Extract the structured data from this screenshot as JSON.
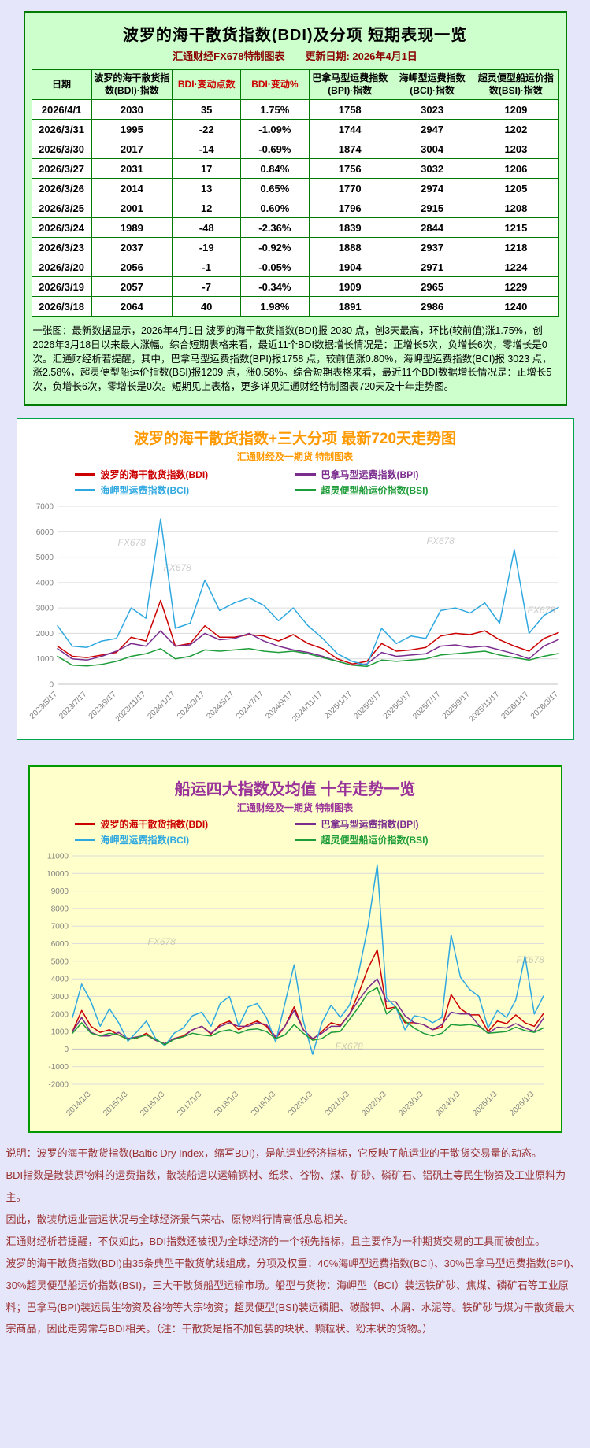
{
  "page": {
    "watermark": "FX678"
  },
  "top_panel": {
    "title": "波罗的海干散货指数(BDI)及分项 短期表现一览",
    "subtitle": "汇通财经FX678特制图表",
    "update_date": "更新日期: 2026年4月1日",
    "note": "一张图：最新数据显示，2026年4月1日 波罗的海干散货指数(BDI)报 2030 点，创3天最高，环比(较前值)涨1.75%，创2026年3月18日以来最大涨幅。综合短期表格来看，最近11个BDI数据增长情况是：正增长5次，负增长6次，零增长是0次。汇通财经析若提醒，其中，巴拿马型运费指数(BPI)报1758 点，较前值涨0.80%，海岬型运费指数(BCI)报 3023 点，涨2.58%，超灵便型船运价指数(BSI)报1209 点，涨0.58%。综合短期表格来看，最近11个BDI数据增长情况是：正增长5次，负增长6次，零增长是0次。短期见上表格，更多详见汇通财经特制图表720天及十年走势图。",
    "table": {
      "headers": [
        {
          "label": "日期",
          "color": "#000000"
        },
        {
          "label": "波罗的海干散货指数(BDI)·指数",
          "color": "#000000"
        },
        {
          "label": "BDI·变动点数",
          "color": "#CC0000"
        },
        {
          "label": "BDI·变动%",
          "color": "#CC0000"
        },
        {
          "label": "巴拿马型运费指数(BPI)·指数",
          "color": "#000000"
        },
        {
          "label": "海岬型运费指数(BCI)·指数",
          "color": "#000000"
        },
        {
          "label": "超灵便型船运价指数(BSI)·指数",
          "color": "#000000"
        }
      ],
      "rows": [
        [
          "2026/4/1",
          "2030",
          "35",
          "1.75%",
          "1758",
          "3023",
          "1209"
        ],
        [
          "2026/3/31",
          "1995",
          "-22",
          "-1.09%",
          "1744",
          "2947",
          "1202"
        ],
        [
          "2026/3/30",
          "2017",
          "-14",
          "-0.69%",
          "1874",
          "3004",
          "1203"
        ],
        [
          "2026/3/27",
          "2031",
          "17",
          "0.84%",
          "1756",
          "3032",
          "1206"
        ],
        [
          "2026/3/26",
          "2014",
          "13",
          "0.65%",
          "1770",
          "2974",
          "1205"
        ],
        [
          "2026/3/25",
          "2001",
          "12",
          "0.60%",
          "1796",
          "2915",
          "1208"
        ],
        [
          "2026/3/24",
          "1989",
          "-48",
          "-2.36%",
          "1839",
          "2844",
          "1215"
        ],
        [
          "2026/3/23",
          "2037",
          "-19",
          "-0.92%",
          "1888",
          "2937",
          "1218"
        ],
        [
          "2026/3/20",
          "2056",
          "-1",
          "-0.05%",
          "1904",
          "2971",
          "1224"
        ],
        [
          "2026/3/19",
          "2057",
          "-7",
          "-0.34%",
          "1909",
          "2965",
          "1229"
        ],
        [
          "2026/3/18",
          "2064",
          "40",
          "1.98%",
          "1891",
          "2986",
          "1240"
        ]
      ]
    }
  },
  "chart_data": [
    {
      "type": "line",
      "title": "波罗的海干散货指数+三大分项  最新720天走势图",
      "subtitle": "汇通财经及一期货 特制图表",
      "xlabel": "",
      "ylabel": "",
      "grid": true,
      "legend_position": "top",
      "ylim": [
        0,
        7000
      ],
      "ytick_step": 1000,
      "x": [
        0,
        1,
        2,
        3,
        4,
        5,
        6,
        7,
        8,
        9,
        10,
        11,
        12,
        13,
        14,
        15,
        16,
        17,
        18,
        19,
        20,
        21,
        22,
        23,
        24,
        25,
        26,
        27,
        28,
        29,
        30,
        31,
        32,
        33,
        34
      ],
      "xtick_values": [
        0,
        2,
        4,
        6,
        8,
        10,
        12,
        14,
        16,
        18,
        20,
        22,
        24,
        26,
        28,
        30,
        32,
        34
      ],
      "xtick_labels": [
        "2023/5/17",
        "2023/7/17",
        "2023/9/17",
        "2023/11/17",
        "2024/1/17",
        "2024/3/17",
        "2024/5/17",
        "2024/7/17",
        "2024/9/17",
        "2024/11/17",
        "2025/1/17",
        "2025/3/17",
        "2025/5/17",
        "2025/7/17",
        "2025/9/17",
        "2025/11/17",
        "2026/1/17",
        "2026/3/17"
      ],
      "series": [
        {
          "code": "bdi",
          "name": "波罗的海干散货指数(BDI)",
          "color": "#CC0000",
          "values": [
            1500,
            1100,
            1050,
            1150,
            1250,
            1850,
            1700,
            3300,
            1500,
            1600,
            2300,
            1850,
            1850,
            1950,
            1900,
            1700,
            1950,
            1600,
            1400,
            1000,
            800,
            900,
            1600,
            1300,
            1350,
            1450,
            1900,
            2000,
            1950,
            2100,
            1750,
            1500,
            1300,
            1800,
            2030
          ]
        },
        {
          "code": "bpi",
          "name": "巴拿马型运费指数(BPI)",
          "color": "#7B2D8E",
          "values": [
            1400,
            1000,
            950,
            1100,
            1300,
            1600,
            1500,
            2100,
            1500,
            1550,
            2000,
            1750,
            1800,
            2000,
            1700,
            1500,
            1350,
            1250,
            1100,
            900,
            750,
            800,
            1250,
            1100,
            1150,
            1200,
            1500,
            1550,
            1450,
            1500,
            1350,
            1200,
            1000,
            1500,
            1758
          ]
        },
        {
          "code": "bci",
          "name": "海岬型运费指数(BCI)",
          "color": "#2FA8E0",
          "values": [
            2300,
            1500,
            1450,
            1700,
            1800,
            3000,
            2600,
            6500,
            2200,
            2400,
            4100,
            2900,
            3200,
            3400,
            3100,
            2500,
            3000,
            2300,
            1800,
            1200,
            900,
            750,
            2200,
            1600,
            1900,
            1800,
            2900,
            3000,
            2800,
            3200,
            2400,
            5300,
            2000,
            2700,
            3023
          ]
        },
        {
          "code": "bsi",
          "name": "超灵便型船运价指数(BSI)",
          "color": "#1F9D3A",
          "values": [
            1100,
            750,
            720,
            780,
            900,
            1100,
            1200,
            1400,
            1000,
            1100,
            1350,
            1300,
            1350,
            1400,
            1300,
            1250,
            1300,
            1200,
            1050,
            900,
            750,
            700,
            950,
            900,
            950,
            1000,
            1150,
            1200,
            1250,
            1300,
            1150,
            1050,
            950,
            1100,
            1209
          ]
        }
      ]
    },
    {
      "type": "line",
      "title": "船运四大指数及均值 十年走势一览",
      "subtitle": "汇通财经及一期货 特制图表",
      "xlabel": "",
      "ylabel": "",
      "grid": true,
      "legend_position": "top",
      "ylim": [
        -2000,
        11000
      ],
      "ytick_step": 1000,
      "x": [
        2013.5,
        2013.75,
        2014.0,
        2014.25,
        2014.5,
        2014.75,
        2015.0,
        2015.25,
        2015.5,
        2015.75,
        2016.0,
        2016.25,
        2016.5,
        2016.75,
        2017.0,
        2017.25,
        2017.5,
        2017.75,
        2018.0,
        2018.25,
        2018.5,
        2018.75,
        2019.0,
        2019.25,
        2019.5,
        2019.75,
        2020.0,
        2020.25,
        2020.5,
        2020.75,
        2021.0,
        2021.25,
        2021.5,
        2021.75,
        2022.0,
        2022.25,
        2022.5,
        2022.75,
        2023.0,
        2023.25,
        2023.5,
        2023.75,
        2024.0,
        2024.25,
        2024.5,
        2024.75,
        2025.0,
        2025.25,
        2025.5,
        2025.75,
        2026.0,
        2026.25
      ],
      "xtick_values": [
        2014,
        2015,
        2016,
        2017,
        2018,
        2019,
        2020,
        2021,
        2022,
        2023,
        2024,
        2025,
        2026
      ],
      "xtick_labels": [
        "2014/1/3",
        "2015/1/3",
        "2016/1/3",
        "2017/1/3",
        "2018/1/3",
        "2019/1/3",
        "2020/1/3",
        "2021/1/3",
        "2022/1/3",
        "2023/1/3",
        "2024/1/3",
        "2025/1/3",
        "2026/1/3"
      ],
      "series": [
        {
          "code": "bdi",
          "name": "波罗的海干散货指数(BDI)",
          "color": "#CC0000",
          "values": [
            1000,
            2200,
            1300,
            950,
            1100,
            800,
            560,
            630,
            900,
            500,
            300,
            600,
            750,
            1100,
            1300,
            850,
            1400,
            1600,
            1100,
            1400,
            1600,
            1300,
            600,
            1300,
            2400,
            1100,
            550,
            1000,
            1500,
            1350,
            2000,
            3200,
            4600,
            5650,
            2300,
            2400,
            1500,
            1500,
            1400,
            1100,
            1250,
            3100,
            2300,
            1950,
            1950,
            1000,
            1600,
            1450,
            1950,
            1500,
            1300,
            2030
          ]
        },
        {
          "code": "bpi",
          "name": "巴拿马型运费指数(BPI)",
          "color": "#7B2D8E",
          "values": [
            1000,
            1800,
            950,
            750,
            750,
            950,
            600,
            700,
            800,
            500,
            300,
            600,
            700,
            1100,
            1300,
            900,
            1300,
            1500,
            1300,
            1300,
            1500,
            1400,
            700,
            1300,
            2200,
            1100,
            600,
            900,
            1300,
            1300,
            2000,
            2800,
            3500,
            4000,
            2700,
            2700,
            1900,
            1500,
            1400,
            1100,
            1400,
            2100,
            2000,
            2000,
            1350,
            900,
            1250,
            1200,
            1450,
            1200,
            1000,
            1758
          ]
        },
        {
          "code": "bci",
          "name": "海岬型运费指数(BCI)",
          "color": "#2FA8E0",
          "values": [
            1800,
            3700,
            2700,
            1300,
            2300,
            1500,
            450,
            1000,
            1600,
            600,
            200,
            900,
            1200,
            1900,
            2100,
            1300,
            2600,
            3000,
            1300,
            2400,
            2600,
            1800,
            400,
            2600,
            4800,
            1600,
            -300,
            1500,
            2500,
            1800,
            2500,
            4400,
            7000,
            10500,
            2900,
            2400,
            1100,
            1900,
            1800,
            1500,
            1800,
            6500,
            4100,
            3400,
            3000,
            1200,
            2200,
            1800,
            2800,
            5300,
            2000,
            3023
          ]
        },
        {
          "code": "bsi",
          "name": "超灵便型船运价指数(BSI)",
          "color": "#1F9D3A",
          "values": [
            900,
            1500,
            900,
            750,
            900,
            800,
            550,
            650,
            800,
            550,
            250,
            550,
            700,
            900,
            800,
            750,
            1000,
            1100,
            900,
            1100,
            1150,
            1000,
            600,
            800,
            1400,
            900,
            500,
            600,
            950,
            1000,
            1700,
            2400,
            3200,
            3500,
            2000,
            2400,
            1600,
            1200,
            900,
            750,
            900,
            1400,
            1350,
            1400,
            1300,
            900,
            950,
            1000,
            1250,
            1050,
            950,
            1209
          ]
        }
      ]
    }
  ],
  "footer": {
    "paragraphs": [
      "说明：波罗的海干散货指数(Baltic Dry Index，缩写BDI)，是航运业经济指标，它反映了航运业的干散货交易量的动态。",
      "BDI指数是散装原物料的运费指数，散装船运以运输钢材、纸浆、谷物、煤、矿砂、磷矿石、铝矾土等民生物资及工业原料为主。",
      "因此，散装航运业营运状况与全球经济景气荣枯、原物料行情高低息息相关。",
      "汇通财经析若提醒，不仅如此，BDI指数还被视为全球经济的一个领先指标，且主要作为一种期货交易的工具而被创立。",
      "波罗的海干散货指数(BDI)由35条典型干散货航线组成，分项及权重：40%海岬型运费指数(BCI)、30%巴拿马型运费指数(BPI)、30%超灵便型船运价指数(BSI)，三大干散货船型运输市场。船型与货物：海岬型（BCI）装运铁矿砂、焦煤、磷矿石等工业原料；巴拿马(BPI)装运民生物资及谷物等大宗物资；超灵便型(BSI)装运磷肥、碳酸钾、木屑、水泥等。铁矿砂与煤为干散货最大宗商品，因此走势常与BDI相关。（注：干散货是指不加包装的块状、颗粒状、粉末状的货物。）"
    ]
  }
}
